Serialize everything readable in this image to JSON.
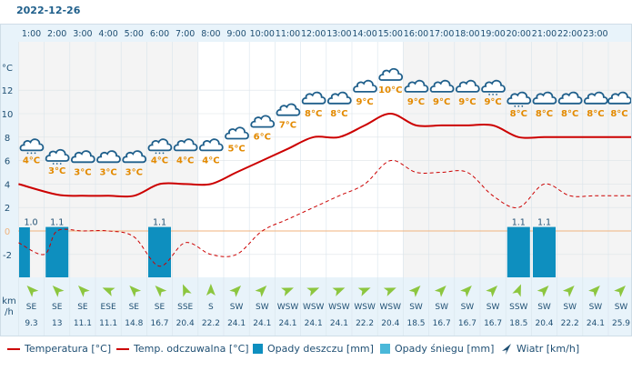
{
  "date": "2022-12-26",
  "colors": {
    "temperature": "#cc0000",
    "feels_like": "#cc0000",
    "rain": "#0e8fbf",
    "snow": "#4ab8d9",
    "wind_arrow": "#8cc63f",
    "temp_label": "#e38a00",
    "axis_text": "#1f4f73",
    "zero_line": "#f0b37e"
  },
  "chart_data": {
    "type": "line",
    "hours": [
      "1:00",
      "2:00",
      "3:00",
      "4:00",
      "5:00",
      "6:00",
      "7:00",
      "8:00",
      "9:00",
      "10:00",
      "11:00",
      "12:00",
      "13:00",
      "14:00",
      "15:00",
      "16:00",
      "17:00",
      "18:00",
      "19:00",
      "20:00",
      "21:00",
      "22:00",
      "23:00"
    ],
    "y_unit": "°C",
    "y_ticks": [
      12,
      10,
      8,
      6,
      4,
      2,
      0,
      -2
    ],
    "ylim": [
      -4,
      14
    ],
    "icons": [
      "cloud-snow",
      "cloud-snow",
      "cloud",
      "cloud",
      "cloud",
      "cloud-snow",
      "cloud",
      "cloud",
      "cloud",
      "cloud",
      "cloud",
      "cloud",
      "cloud",
      "cloud",
      "cloud",
      "cloud",
      "cloud",
      "cloud",
      "cloud-rain",
      "cloud-rain",
      "cloud",
      "cloud",
      "cloud",
      "cloud"
    ],
    "temp_labels": [
      "4°C",
      "3°C",
      "3°C",
      "3°C",
      "3°C",
      "4°C",
      "4°C",
      "4°C",
      "5°C",
      "6°C",
      "7°C",
      "8°C",
      "8°C",
      "9°C",
      "10°C",
      "9°C",
      "9°C",
      "9°C",
      "9°C",
      "8°C",
      "8°C",
      "8°C",
      "8°C",
      "8°C"
    ],
    "series": [
      {
        "name": "Temperatura [°C]",
        "x": [
          0.5,
          2,
          3,
          4,
          5,
          6,
          7,
          8,
          9,
          10,
          11,
          12,
          13,
          14,
          15,
          16,
          17,
          18,
          19,
          20,
          21,
          22,
          23,
          24.5
        ],
        "values": [
          4,
          3.1,
          3,
          3,
          3,
          4,
          4,
          4,
          5,
          6,
          7,
          8,
          8,
          9,
          10,
          9,
          9,
          9,
          9,
          8,
          8,
          8,
          8,
          8
        ]
      },
      {
        "name": "Temp. odczuwalna [°C]",
        "x": [
          0.5,
          1.5,
          2,
          3,
          4,
          5,
          6,
          7,
          8,
          9,
          10,
          11,
          12,
          13,
          14,
          15,
          16,
          17,
          18,
          19,
          20,
          21,
          22,
          23,
          24.5
        ],
        "values": [
          -1,
          -2,
          0,
          0,
          0,
          -0.5,
          -3,
          -1,
          -2,
          -2,
          0,
          1,
          2,
          3,
          4,
          6,
          5,
          5,
          5,
          3,
          2,
          4,
          3,
          3,
          3
        ]
      },
      {
        "name": "Opady deszczu [mm]",
        "x": [
          0.5,
          2,
          6,
          20,
          21
        ],
        "values": [
          1.0,
          1.1,
          1.1,
          1.1,
          1.1
        ]
      },
      {
        "name": "Opady śniegu [mm]",
        "values": []
      }
    ],
    "precip_labels": [
      {
        "x": 0.5,
        "label": "1.0"
      },
      {
        "x": 2,
        "label": "1.1"
      },
      {
        "x": 6,
        "label": "1.1"
      },
      {
        "x": 20,
        "label": "1.1"
      },
      {
        "x": 21,
        "label": "1.1"
      }
    ],
    "wind": {
      "unit_line1": "km",
      "unit_line2": "/h",
      "directions": [
        "SE",
        "SE",
        "SE",
        "ESE",
        "SE",
        "SE",
        "SSE",
        "S",
        "SW",
        "SW",
        "WSW",
        "WSW",
        "WSW",
        "WSW",
        "WSW",
        "SW",
        "SW",
        "SW",
        "SW",
        "SSW",
        "SW",
        "SW",
        "SW",
        "SW"
      ],
      "speeds": [
        "9.3",
        "13",
        "11.1",
        "11.1",
        "14.8",
        "16.7",
        "20.4",
        "22.2",
        "24.1",
        "24.1",
        "24.1",
        "24.1",
        "24.1",
        "22.2",
        "20.4",
        "18.5",
        "16.7",
        "16.7",
        "16.7",
        "18.5",
        "20.4",
        "22.2",
        "24.1",
        "25.9"
      ]
    }
  },
  "legend": {
    "temperature": "Temperatura [°C]",
    "feels_like": "Temp. odczuwalna [°C]",
    "rain": "Opady deszczu [mm]",
    "snow": "Opady śniegu [mm]",
    "wind": "Wiatr [km/h]"
  }
}
